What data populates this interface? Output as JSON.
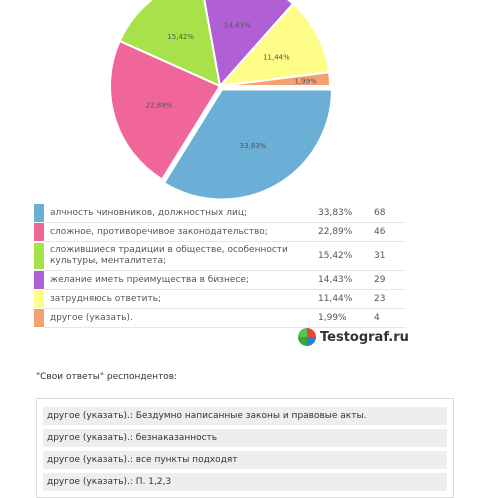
{
  "chart_data": {
    "type": "pie",
    "categories": [
      "алчность чиновников, должностных лиц;",
      "сложное, противоречивое законодательство;",
      "сложившиеся традиции в обществе, особенности культуры, менталитета;",
      "желание иметь преимущества в бизнесе;",
      "затрудняюсь ответить;",
      "другое (указать)."
    ],
    "values": [
      33.83,
      22.89,
      15.42,
      14.43,
      11.44,
      1.99
    ],
    "value_labels": [
      "33,83%",
      "22,89%",
      "15,42%",
      "14,43%",
      "11,44%",
      "1,99%"
    ],
    "counts": [
      "68",
      "46",
      "31",
      "29",
      "23",
      "4"
    ],
    "colors": [
      "#6baed6",
      "#f06699",
      "#a8e24a",
      "#b060d4",
      "#fdfd88",
      "#f4a070"
    ]
  },
  "legend": {
    "rows": [
      {
        "label": "алчность чиновников, должностных лиц;",
        "pct": "33,83%",
        "count": "68"
      },
      {
        "label": "сложное, противоречивое законодательство;",
        "pct": "22,89%",
        "count": "46"
      },
      {
        "label": "сложившиеся традиции в обществе, особенности культуры, менталитета;",
        "pct": "15,42%",
        "count": "31"
      },
      {
        "label": "желание иметь преимущества в бизнесе;",
        "pct": "14,43%",
        "count": "29"
      },
      {
        "label": "затрудняюсь ответить;",
        "pct": "11,44%",
        "count": "23"
      },
      {
        "label": "другое (указать).",
        "pct": "1,99%",
        "count": "4"
      }
    ]
  },
  "logo": {
    "text": "Testograf.ru"
  },
  "own_answers": {
    "title": "\"Свои ответы\" респондентов:",
    "items": [
      "другое (указать).: Бездумно написанные законы и правовые акты.",
      "другое (указать).: безнаказанность",
      "другое (указать).: все пункты подходят",
      "другое (указать).: П. 1,2,3"
    ]
  }
}
